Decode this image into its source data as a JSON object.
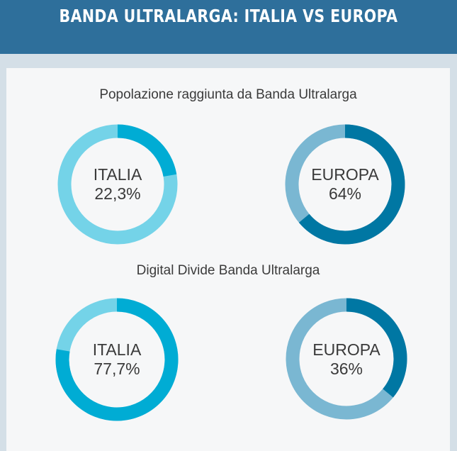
{
  "header": {
    "title": "BANDA ULTRALARGA: ITALIA VS EUROPA"
  },
  "colors": {
    "header_bg": "#2e6f9b",
    "italia_main": "#00acd4",
    "italia_track": "#74d3e8",
    "europa_main": "#0077a3",
    "europa_track": "#7ab7d2"
  },
  "chart_data": [
    {
      "type": "pie",
      "title": "Popolazione raggiunta da Banda Ultralarga",
      "charts": [
        {
          "label": "ITALIA",
          "value_text": "22,3%",
          "value": 22.3,
          "color": "#00acd4",
          "track": "#74d3e8"
        },
        {
          "label": "EUROPA",
          "value_text": "64%",
          "value": 64,
          "color": "#0077a3",
          "track": "#7ab7d2"
        }
      ]
    },
    {
      "type": "pie",
      "title": "Digital Divide Banda Ultralarga",
      "charts": [
        {
          "label": "ITALIA",
          "value_text": "77,7%",
          "value": 77.7,
          "color": "#00acd4",
          "track": "#74d3e8"
        },
        {
          "label": "EUROPA",
          "value_text": "36%",
          "value": 36,
          "color": "#0077a3",
          "track": "#7ab7d2"
        }
      ]
    }
  ]
}
